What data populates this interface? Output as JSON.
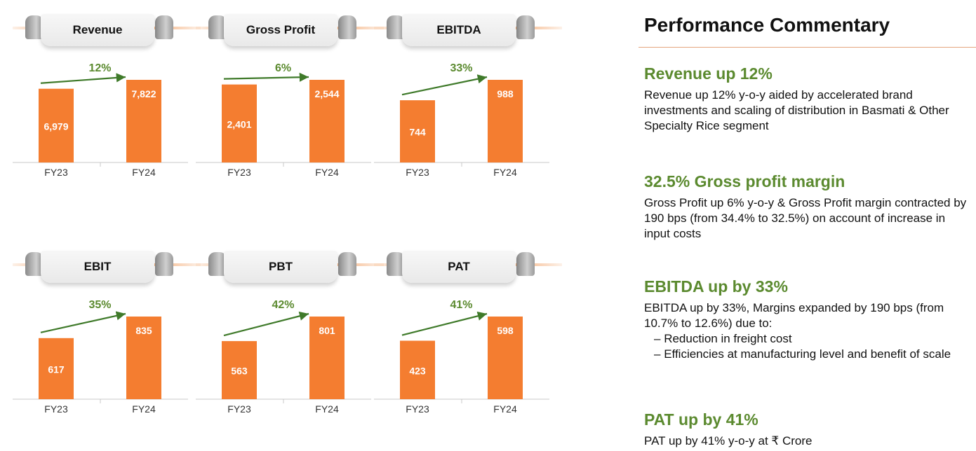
{
  "charts_meta": {
    "bar_color": "#f47d30",
    "arrow_color": "#3f7a2a",
    "growth_color": "#5b8a2f"
  },
  "chart_data": [
    {
      "type": "bar",
      "title": "Revenue",
      "categories": [
        "FY23",
        "FY24"
      ],
      "values": [
        6979,
        7822
      ],
      "value_labels": [
        "6,979",
        "7,822"
      ],
      "growth": "12%"
    },
    {
      "type": "bar",
      "title": "Gross Profit",
      "categories": [
        "FY23",
        "FY24"
      ],
      "values": [
        2401,
        2544
      ],
      "value_labels": [
        "2,401",
        "2,544"
      ],
      "growth": "6%"
    },
    {
      "type": "bar",
      "title": "EBITDA",
      "categories": [
        "FY23",
        "FY24"
      ],
      "values": [
        744,
        988
      ],
      "value_labels": [
        "744",
        "988"
      ],
      "growth": "33%"
    },
    {
      "type": "bar",
      "title": "EBIT",
      "categories": [
        "FY23",
        "FY24"
      ],
      "values": [
        617,
        835
      ],
      "value_labels": [
        "617",
        "835"
      ],
      "growth": "35%"
    },
    {
      "type": "bar",
      "title": "PBT",
      "categories": [
        "FY23",
        "FY24"
      ],
      "values": [
        563,
        801
      ],
      "value_labels": [
        "563",
        "801"
      ],
      "growth": "42%"
    },
    {
      "type": "bar",
      "title": "PAT",
      "categories": [
        "FY23",
        "FY24"
      ],
      "values": [
        423,
        598
      ],
      "value_labels": [
        "423",
        "598"
      ],
      "growth": "41%"
    }
  ],
  "commentary": {
    "title": "Performance Commentary",
    "items": [
      {
        "heading": "Revenue up 12%",
        "text": "Revenue up 12% y-o-y aided by accelerated brand investments and scaling of distribution in Basmati & Other Specialty Rice segment"
      },
      {
        "heading": "32.5% Gross profit margin",
        "text": "Gross Profit up 6% y-o-y & Gross Profit margin contracted by 190 bps (from 34.4% to 32.5%) on account of increase in input costs"
      },
      {
        "heading": "EBITDA up by 33%",
        "text": "EBITDA up by 33%, Margins expanded by 190 bps (from 10.7% to 12.6%) due to:",
        "bullets": [
          "Reduction in freight cost",
          "Efficiencies at manufacturing level and benefit of scale"
        ]
      },
      {
        "heading": "PAT up by 41%",
        "text": "PAT up by 41% y-o-y at ₹ Crore"
      }
    ]
  }
}
